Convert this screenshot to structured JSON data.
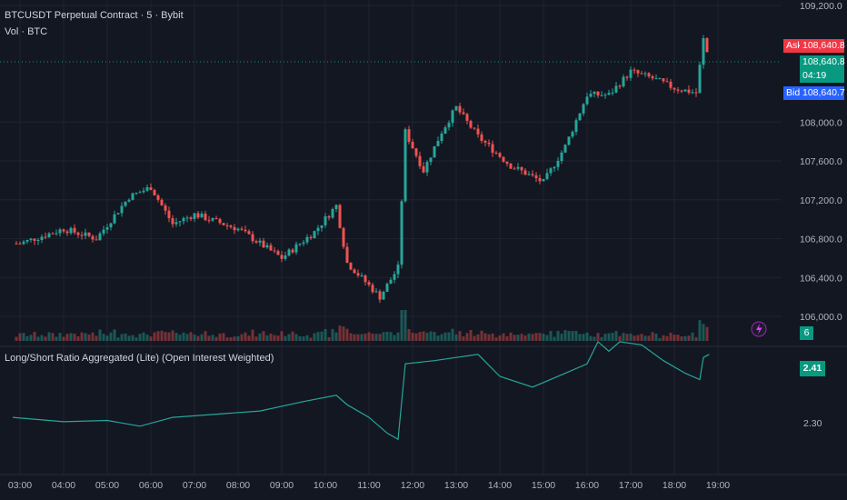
{
  "header": {
    "symbol_line": "BTCUSDT Perpetual Contract · 5 · Bybit",
    "volume_line": "Vol · BTC",
    "indicator_title": "Long/Short Ratio Aggregated (Lite) (Open Interest Weighted)"
  },
  "price_panel": {
    "ask_label": "Ask",
    "ask_price": "108,640.8",
    "last_price": "108,640.8",
    "countdown": "04:19",
    "bid_label": "Bid",
    "bid_price": "108,640.7",
    "volume_badge": "6"
  },
  "indicator_panel": {
    "current_value": "2.41",
    "tick_label": "2.30"
  },
  "colors": {
    "background": "#131722",
    "up": "#26a69a",
    "down": "#ef5350",
    "grid": "#1f2330",
    "line": "#26a69a",
    "ask": "#f23645",
    "bid": "#2962ff",
    "last": "#089981"
  },
  "chart_data": [
    {
      "type": "candlestick",
      "x_ticks": [
        "03:00",
        "04:00",
        "05:00",
        "06:00",
        "07:00",
        "08:00",
        "09:00",
        "10:00",
        "11:00",
        "12:00",
        "13:00",
        "14:00",
        "15:00",
        "16:00",
        "17:00",
        "18:00",
        "19:00"
      ],
      "y_ticks": [
        "109,200.0",
        "108,000.0",
        "107,600.0",
        "107,200.0",
        "106,800.0",
        "106,400.0",
        "106,000.0"
      ],
      "y_tick_values": [
        109200,
        108000,
        107600,
        107200,
        106800,
        106400,
        106000
      ],
      "ylim": [
        105800,
        109280
      ],
      "key_closes": [
        {
          "time": "03:00",
          "price": 106750
        },
        {
          "time": "04:00",
          "price": 106900
        },
        {
          "time": "04:45",
          "price": 106800
        },
        {
          "time": "05:30",
          "price": 107230
        },
        {
          "time": "06:00",
          "price": 107330
        },
        {
          "time": "06:30",
          "price": 106950
        },
        {
          "time": "07:00",
          "price": 107050
        },
        {
          "time": "08:00",
          "price": 106900
        },
        {
          "time": "09:00",
          "price": 106600
        },
        {
          "time": "09:45",
          "price": 106870
        },
        {
          "time": "10:15",
          "price": 107140
        },
        {
          "time": "10:30",
          "price": 106550
        },
        {
          "time": "11:15",
          "price": 106200
        },
        {
          "time": "11:40",
          "price": 106500
        },
        {
          "time": "11:50",
          "price": 107900
        },
        {
          "time": "12:15",
          "price": 107500
        },
        {
          "time": "12:40",
          "price": 107900
        },
        {
          "time": "13:00",
          "price": 108150
        },
        {
          "time": "13:30",
          "price": 107850
        },
        {
          "time": "14:15",
          "price": 107550
        },
        {
          "time": "15:00",
          "price": 107380
        },
        {
          "time": "15:30",
          "price": 107750
        },
        {
          "time": "16:00",
          "price": 108280
        },
        {
          "time": "16:30",
          "price": 108280
        },
        {
          "time": "17:00",
          "price": 108520
        },
        {
          "time": "17:30",
          "price": 108450
        },
        {
          "time": "18:00",
          "price": 108350
        },
        {
          "time": "18:30",
          "price": 108300
        },
        {
          "time": "18:40",
          "price": 108850
        },
        {
          "time": "18:48",
          "price": 108640.8
        }
      ]
    },
    {
      "type": "line",
      "name": "Long/Short Ratio Aggregated (Lite) (Open Interest Weighted)",
      "y_ticks": [
        "2.30"
      ],
      "last_value": 2.41,
      "points": [
        {
          "time": "02:50",
          "value": 2.31
        },
        {
          "time": "04:00",
          "value": 2.303
        },
        {
          "time": "05:00",
          "value": 2.305
        },
        {
          "time": "05:45",
          "value": 2.296
        },
        {
          "time": "06:30",
          "value": 2.31
        },
        {
          "time": "07:30",
          "value": 2.315
        },
        {
          "time": "08:30",
          "value": 2.32
        },
        {
          "time": "09:30",
          "value": 2.335
        },
        {
          "time": "10:15",
          "value": 2.345
        },
        {
          "time": "10:30",
          "value": 2.33
        },
        {
          "time": "11:00",
          "value": 2.31
        },
        {
          "time": "11:25",
          "value": 2.285
        },
        {
          "time": "11:40",
          "value": 2.275
        },
        {
          "time": "11:50",
          "value": 2.395
        },
        {
          "time": "12:30",
          "value": 2.4
        },
        {
          "time": "13:00",
          "value": 2.405
        },
        {
          "time": "13:30",
          "value": 2.41
        },
        {
          "time": "14:00",
          "value": 2.375
        },
        {
          "time": "14:45",
          "value": 2.358
        },
        {
          "time": "15:30",
          "value": 2.38
        },
        {
          "time": "16:00",
          "value": 2.395
        },
        {
          "time": "16:15",
          "value": 2.43
        },
        {
          "time": "16:30",
          "value": 2.415
        },
        {
          "time": "16:45",
          "value": 2.43
        },
        {
          "time": "17:15",
          "value": 2.425
        },
        {
          "time": "17:45",
          "value": 2.4
        },
        {
          "time": "18:15",
          "value": 2.38
        },
        {
          "time": "18:35",
          "value": 2.37
        },
        {
          "time": "18:40",
          "value": 2.405
        },
        {
          "time": "18:48",
          "value": 2.41
        }
      ]
    }
  ]
}
